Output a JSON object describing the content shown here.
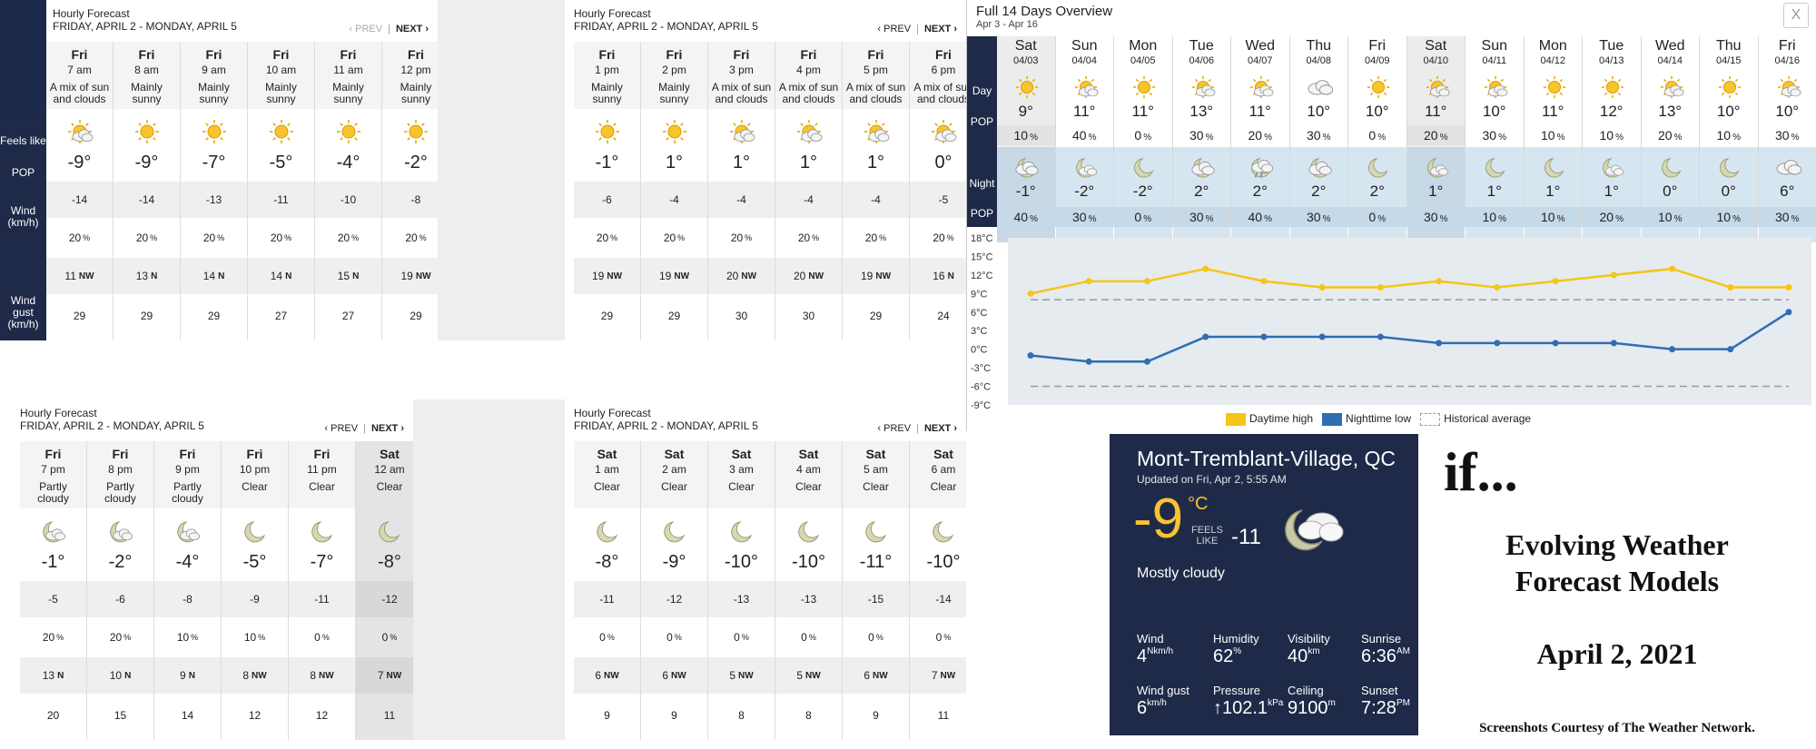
{
  "panels": [
    {
      "title": "Hourly Forecast",
      "range": "FRIDAY, APRIL 2 - MONDAY, APRIL 5",
      "prev": "‹ PREV",
      "next": "NEXT ›",
      "prev_disabled": true,
      "labels": [
        "Feels like",
        "POP",
        "Wind (km/h)",
        "Wind gust (km/h)"
      ],
      "columns": [
        {
          "day": "Fri",
          "time": "7 am",
          "desc": "A mix of sun and clouds",
          "icon": "sun-cloud-icon",
          "temp": "-9°",
          "feels": "-14",
          "pop": "20",
          "wind": "11",
          "dir": "NW",
          "gust": "29"
        },
        {
          "day": "Fri",
          "time": "8 am",
          "desc": "Mainly sunny",
          "icon": "sun-icon",
          "temp": "-9°",
          "feels": "-14",
          "pop": "20",
          "wind": "13",
          "dir": "N",
          "gust": "29"
        },
        {
          "day": "Fri",
          "time": "9 am",
          "desc": "Mainly sunny",
          "icon": "sun-icon",
          "temp": "-7°",
          "feels": "-13",
          "pop": "20",
          "wind": "14",
          "dir": "N",
          "gust": "29"
        },
        {
          "day": "Fri",
          "time": "10 am",
          "desc": "Mainly sunny",
          "icon": "sun-icon",
          "temp": "-5°",
          "feels": "-11",
          "pop": "20",
          "wind": "14",
          "dir": "N",
          "gust": "27"
        },
        {
          "day": "Fri",
          "time": "11 am",
          "desc": "Mainly sunny",
          "icon": "sun-icon",
          "temp": "-4°",
          "feels": "-10",
          "pop": "20",
          "wind": "15",
          "dir": "N",
          "gust": "27"
        },
        {
          "day": "Fri",
          "time": "12 pm",
          "desc": "Mainly sunny",
          "icon": "sun-icon",
          "temp": "-2°",
          "feels": "-8",
          "pop": "20",
          "wind": "19",
          "dir": "NW",
          "gust": "29"
        }
      ]
    },
    {
      "title": "Hourly Forecast",
      "range": "FRIDAY, APRIL 2 - MONDAY, APRIL 5",
      "prev": "‹ PREV",
      "next": "NEXT ›",
      "prev_disabled": false,
      "columns": [
        {
          "day": "Fri",
          "time": "1 pm",
          "desc": "Mainly sunny",
          "icon": "sun-icon",
          "temp": "-1°",
          "feels": "-6",
          "pop": "20",
          "wind": "19",
          "dir": "NW",
          "gust": "29"
        },
        {
          "day": "Fri",
          "time": "2 pm",
          "desc": "Mainly sunny",
          "icon": "sun-icon",
          "temp": "1°",
          "feels": "-4",
          "pop": "20",
          "wind": "19",
          "dir": "NW",
          "gust": "29"
        },
        {
          "day": "Fri",
          "time": "3 pm",
          "desc": "A mix of sun and clouds",
          "icon": "sun-cloud-icon",
          "temp": "1°",
          "feels": "-4",
          "pop": "20",
          "wind": "20",
          "dir": "NW",
          "gust": "30"
        },
        {
          "day": "Fri",
          "time": "4 pm",
          "desc": "A mix of sun and clouds",
          "icon": "sun-cloud-icon",
          "temp": "1°",
          "feels": "-4",
          "pop": "20",
          "wind": "20",
          "dir": "NW",
          "gust": "30"
        },
        {
          "day": "Fri",
          "time": "5 pm",
          "desc": "A mix of sun and clouds",
          "icon": "sun-cloud-icon",
          "temp": "1°",
          "feels": "-4",
          "pop": "20",
          "wind": "19",
          "dir": "NW",
          "gust": "29"
        },
        {
          "day": "Fri",
          "time": "6 pm",
          "desc": "A mix of sun and clouds",
          "icon": "sun-cloud-icon",
          "temp": "0°",
          "feels": "-5",
          "pop": "20",
          "wind": "16",
          "dir": "N",
          "gust": "24"
        }
      ]
    },
    {
      "title": "Hourly Forecast",
      "range": "FRIDAY, APRIL 2 - MONDAY, APRIL 5",
      "prev": "‹ PREV",
      "next": "NEXT ›",
      "prev_disabled": false,
      "columns": [
        {
          "day": "Fri",
          "time": "7 pm",
          "desc": "Partly cloudy",
          "icon": "moon-cloud-icon",
          "temp": "-1°",
          "feels": "-5",
          "pop": "20",
          "wind": "13",
          "dir": "N",
          "gust": "20"
        },
        {
          "day": "Fri",
          "time": "8 pm",
          "desc": "Partly cloudy",
          "icon": "moon-cloud-icon",
          "temp": "-2°",
          "feels": "-6",
          "pop": "20",
          "wind": "10",
          "dir": "N",
          "gust": "15"
        },
        {
          "day": "Fri",
          "time": "9 pm",
          "desc": "Partly cloudy",
          "icon": "moon-cloud-icon",
          "temp": "-4°",
          "feels": "-8",
          "pop": "10",
          "wind": "9",
          "dir": "N",
          "gust": "14"
        },
        {
          "day": "Fri",
          "time": "10 pm",
          "desc": "Clear",
          "icon": "moon-icon",
          "temp": "-5°",
          "feels": "-9",
          "pop": "10",
          "wind": "8",
          "dir": "NW",
          "gust": "12"
        },
        {
          "day": "Fri",
          "time": "11 pm",
          "desc": "Clear",
          "icon": "moon-icon",
          "temp": "-7°",
          "feels": "-11",
          "pop": "0",
          "wind": "8",
          "dir": "NW",
          "gust": "12"
        },
        {
          "day": "Sat",
          "time": "12 am",
          "desc": "Clear",
          "icon": "moon-icon",
          "temp": "-8°",
          "feels": "-12",
          "pop": "0",
          "wind": "7",
          "dir": "NW",
          "gust": "11"
        }
      ]
    },
    {
      "title": "Hourly Forecast",
      "range": "FRIDAY, APRIL 2 - MONDAY, APRIL 5",
      "prev": "‹ PREV",
      "next": "NEXT ›",
      "prev_disabled": false,
      "columns": [
        {
          "day": "Sat",
          "time": "1 am",
          "desc": "Clear",
          "icon": "moon-icon",
          "temp": "-8°",
          "feels": "-11",
          "pop": "0",
          "wind": "6",
          "dir": "NW",
          "gust": "9"
        },
        {
          "day": "Sat",
          "time": "2 am",
          "desc": "Clear",
          "icon": "moon-icon",
          "temp": "-9°",
          "feels": "-12",
          "pop": "0",
          "wind": "6",
          "dir": "NW",
          "gust": "9"
        },
        {
          "day": "Sat",
          "time": "3 am",
          "desc": "Clear",
          "icon": "moon-icon",
          "temp": "-10°",
          "feels": "-13",
          "pop": "0",
          "wind": "5",
          "dir": "NW",
          "gust": "8"
        },
        {
          "day": "Sat",
          "time": "4 am",
          "desc": "Clear",
          "icon": "moon-icon",
          "temp": "-10°",
          "feels": "-13",
          "pop": "0",
          "wind": "5",
          "dir": "NW",
          "gust": "8"
        },
        {
          "day": "Sat",
          "time": "5 am",
          "desc": "Clear",
          "icon": "moon-icon",
          "temp": "-11°",
          "feels": "-15",
          "pop": "0",
          "wind": "6",
          "dir": "NW",
          "gust": "9"
        },
        {
          "day": "Sat",
          "time": "6 am",
          "desc": "Clear",
          "icon": "moon-icon",
          "temp": "-10°",
          "feels": "-14",
          "pop": "0",
          "wind": "7",
          "dir": "NW",
          "gust": "11"
        }
      ]
    }
  ],
  "overview": {
    "title": "Full 14 Days Overview",
    "subtitle": "Apr 3 - Apr 16",
    "close": "X",
    "row_labels": {
      "day": "Day",
      "pop": "POP",
      "night": "Night",
      "pop2": "POP"
    },
    "days": [
      {
        "d": "Sat",
        "date": "04/03",
        "icon": "sun-icon",
        "hi": "9°",
        "pop_day": "10",
        "nicon": "cloud-night-icon",
        "lo": "-1°",
        "pop_night": "40"
      },
      {
        "d": "Sun",
        "date": "04/04",
        "icon": "sun-cloud-icon",
        "hi": "11°",
        "pop_day": "40",
        "nicon": "moon-cloud-icon",
        "lo": "-2°",
        "pop_night": "30"
      },
      {
        "d": "Mon",
        "date": "04/05",
        "icon": "sun-icon",
        "hi": "11°",
        "pop_day": "0",
        "nicon": "moon-icon",
        "lo": "-2°",
        "pop_night": "0"
      },
      {
        "d": "Tue",
        "date": "04/06",
        "icon": "sun-cloud-icon",
        "hi": "13°",
        "pop_day": "30",
        "nicon": "cloud-night-icon",
        "lo": "2°",
        "pop_night": "30"
      },
      {
        "d": "Wed",
        "date": "04/07",
        "icon": "sun-cloud-icon",
        "hi": "11°",
        "pop_day": "20",
        "nicon": "rain-cloud-icon",
        "lo": "2°",
        "pop_night": "40"
      },
      {
        "d": "Thu",
        "date": "04/08",
        "icon": "cloud-icon",
        "hi": "10°",
        "pop_day": "30",
        "nicon": "cloud-night-icon",
        "lo": "2°",
        "pop_night": "30"
      },
      {
        "d": "Fri",
        "date": "04/09",
        "icon": "sun-icon",
        "hi": "10°",
        "pop_day": "0",
        "nicon": "moon-icon",
        "lo": "2°",
        "pop_night": "0"
      },
      {
        "d": "Sat",
        "date": "04/10",
        "icon": "sun-cloud-icon",
        "hi": "11°",
        "pop_day": "20",
        "nicon": "moon-cloud-icon",
        "lo": "1°",
        "pop_night": "30"
      },
      {
        "d": "Sun",
        "date": "04/11",
        "icon": "sun-cloud-icon",
        "hi": "10°",
        "pop_day": "30",
        "nicon": "moon-icon",
        "lo": "1°",
        "pop_night": "10"
      },
      {
        "d": "Mon",
        "date": "04/12",
        "icon": "sun-icon",
        "hi": "11°",
        "pop_day": "10",
        "nicon": "moon-icon",
        "lo": "1°",
        "pop_night": "10"
      },
      {
        "d": "Tue",
        "date": "04/13",
        "icon": "sun-icon",
        "hi": "12°",
        "pop_day": "10",
        "nicon": "moon-cloud-icon",
        "lo": "1°",
        "pop_night": "20"
      },
      {
        "d": "Wed",
        "date": "04/14",
        "icon": "sun-cloud-icon",
        "hi": "13°",
        "pop_day": "20",
        "nicon": "moon-icon",
        "lo": "0°",
        "pop_night": "10"
      },
      {
        "d": "Thu",
        "date": "04/15",
        "icon": "sun-icon",
        "hi": "10°",
        "pop_day": "10",
        "nicon": "moon-icon",
        "lo": "0°",
        "pop_night": "10"
      },
      {
        "d": "Fri",
        "date": "04/16",
        "icon": "sun-cloud-icon",
        "hi": "10°",
        "pop_day": "30",
        "nicon": "cloud-icon",
        "lo": "6°",
        "pop_night": "30"
      }
    ],
    "legend": {
      "high": "Daytime high",
      "low": "Nighttime low",
      "hist": "Historical average"
    },
    "colors": {
      "high": "#f5c518",
      "low": "#2f6db5",
      "hist": "#999999"
    }
  },
  "chart_data": {
    "type": "line",
    "x": [
      "04/03",
      "04/04",
      "04/05",
      "04/06",
      "04/07",
      "04/08",
      "04/09",
      "04/10",
      "04/11",
      "04/12",
      "04/13",
      "04/14",
      "04/15",
      "04/16"
    ],
    "series": [
      {
        "name": "Daytime high",
        "values": [
          9,
          11,
          11,
          13,
          11,
          10,
          10,
          11,
          10,
          11,
          12,
          13,
          10,
          10
        ]
      },
      {
        "name": "Nighttime low",
        "values": [
          -1,
          -2,
          -2,
          2,
          2,
          2,
          2,
          1,
          1,
          1,
          1,
          0,
          0,
          6
        ]
      },
      {
        "name": "Historical average",
        "values": [
          8,
          8,
          8,
          8,
          8,
          8,
          8,
          8,
          8,
          8,
          8,
          8,
          8,
          8
        ]
      },
      {
        "name": "Historical average",
        "values": [
          -6,
          -6,
          -6,
          -6,
          -6,
          -6,
          -6,
          -6,
          -6,
          -6,
          -6,
          -6,
          -6,
          -6
        ]
      }
    ],
    "yticks": [
      "18°C",
      "15°C",
      "12°C",
      "9°C",
      "6°C",
      "3°C",
      "0°C",
      "-3°C",
      "-6°C",
      "-9°C"
    ],
    "ylim": [
      -9,
      18
    ]
  },
  "current": {
    "location": "Mont-Tremblant-Village, QC",
    "updated": "Updated on Fri, Apr 2, 5:55 AM",
    "temp": "-9",
    "unit": "°C",
    "feels_label1": "FEELS",
    "feels_label2": "LIKE",
    "feels": "-11",
    "condition": "Mostly cloudy",
    "stats": [
      {
        "label": "Wind",
        "value": "4",
        "sup": "N",
        "unit": "km/h"
      },
      {
        "label": "Humidity",
        "value": "62",
        "sup": "%",
        "unit": ""
      },
      {
        "label": "Visibility",
        "value": "40",
        "sup": "km",
        "unit": ""
      },
      {
        "label": "Sunrise",
        "value": "6:36",
        "sup": "AM",
        "unit": ""
      },
      {
        "label": "Wind gust",
        "value": "6",
        "sup": "",
        "unit": "km/h"
      },
      {
        "label": "Pressure",
        "value": "↑102.1",
        "sup": "kPa",
        "unit": ""
      },
      {
        "label": "Ceiling",
        "value": "9100",
        "sup": "m",
        "unit": ""
      },
      {
        "label": "Sunset",
        "value": "7:28",
        "sup": "PM",
        "unit": ""
      }
    ]
  },
  "title_card": {
    "if": "if...",
    "line1": "Evolving Weather",
    "line2": "Forecast Models",
    "date": "April 2, 2021",
    "credit": "Screenshots Courtesy of The Weather Network."
  }
}
